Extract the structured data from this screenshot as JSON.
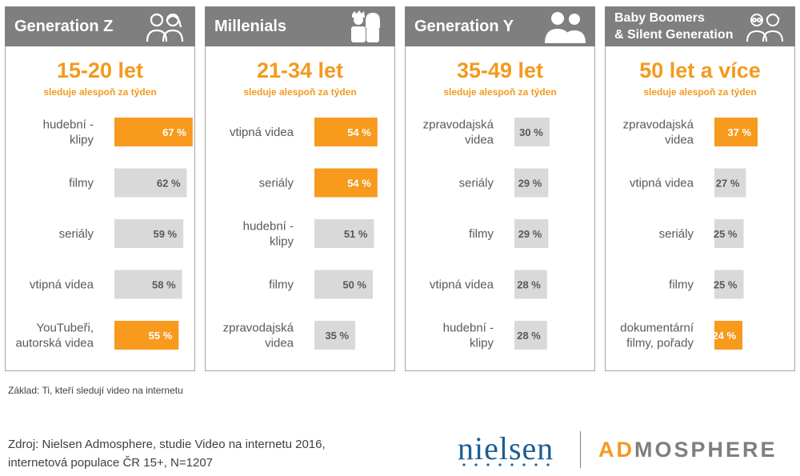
{
  "colors": {
    "highlight": "#f79a1e",
    "bar": "#d9d9d9",
    "header": "#7f7f7f"
  },
  "panels": [
    {
      "title": "Generation Z",
      "icon": "teen-couple-icon",
      "age": "15-20 let",
      "subtitle": "sleduje alespoň za týden"
    },
    {
      "title": "Millenials",
      "icon": "young-adults-icon",
      "age": "21-34 let",
      "subtitle": "sleduje alespoň za týden"
    },
    {
      "title": "Generation Y",
      "icon": "adult-couple-icon",
      "age": "35-49 let",
      "subtitle": "sleduje alespoň za týden"
    },
    {
      "title": "Baby Boomers\n& Silent Generation",
      "icon": "elderly-couple-icon",
      "age": "50 let a více",
      "subtitle": "sleduje alespoň za týden"
    }
  ],
  "chart_data": [
    {
      "type": "bar",
      "categories": [
        "hudební -\nklipy",
        "filmy",
        "seriály",
        "vtipná videa",
        "YouTubeři,\nautorská videa"
      ],
      "values": [
        67,
        62,
        59,
        58,
        55
      ],
      "labels": [
        "67 %",
        "62 %",
        "59 %",
        "58 %",
        "55 %"
      ],
      "highlight": [
        true,
        false,
        false,
        false,
        true
      ]
    },
    {
      "type": "bar",
      "categories": [
        "vtipná videa",
        "seriály",
        "hudební -\nklipy",
        "filmy",
        "zpravodajská\nvidea"
      ],
      "values": [
        54,
        54,
        51,
        50,
        35
      ],
      "labels": [
        "54 %",
        "54 %",
        "51 %",
        "50 %",
        "35 %"
      ],
      "highlight": [
        true,
        true,
        false,
        false,
        false
      ]
    },
    {
      "type": "bar",
      "categories": [
        "zpravodajská\nvidea",
        "seriály",
        "filmy",
        "vtipná videa",
        "hudební -\nklipy"
      ],
      "values": [
        30,
        29,
        29,
        28,
        28
      ],
      "labels": [
        "30 %",
        "29 %",
        "29 %",
        "28 %",
        "28 %"
      ],
      "highlight": [
        false,
        false,
        false,
        false,
        false
      ]
    },
    {
      "type": "bar",
      "categories": [
        "zpravodajská\nvidea",
        "vtipná videa",
        "seriály",
        "filmy",
        "dokumentární\nfilmy, pořady"
      ],
      "values": [
        37,
        27,
        25,
        25,
        24
      ],
      "labels": [
        "37 %",
        "27 %",
        "25 %",
        "25 %",
        "24 %"
      ],
      "highlight": [
        true,
        false,
        false,
        false,
        true
      ]
    }
  ],
  "footer": {
    "basis": "Základ: Ti, kteří sledují video na internetu",
    "source": "Zdroj: Nielsen Admosphere, studie Video na internetu 2016,\ninternetová populace ČR 15+, N=1207"
  },
  "logo": {
    "nielsen": "nielsen",
    "admo_ad": "AD",
    "admo_rest": "MOSPHERE"
  }
}
